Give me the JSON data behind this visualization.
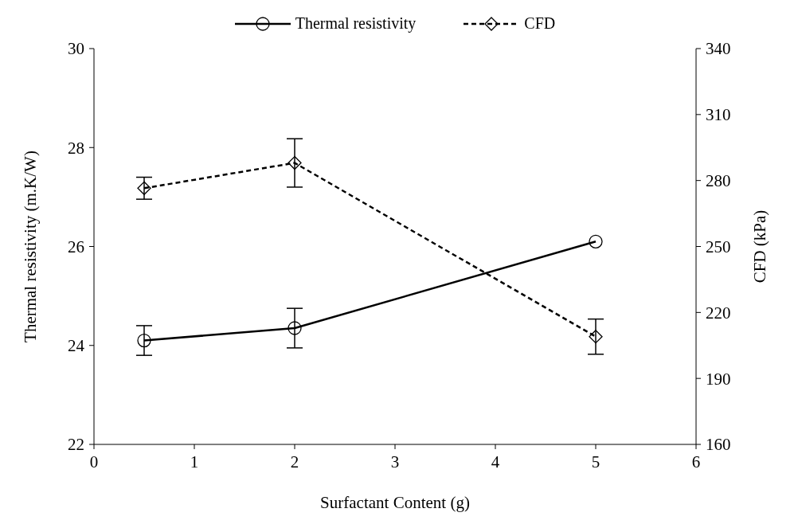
{
  "chart_data": {
    "type": "line",
    "xlabel": "Surfactant Content (g)",
    "ylabel": "Thermal resistivity (m.K/W)",
    "y2label": "CFD (kPa)",
    "x": [
      0.5,
      2,
      5
    ],
    "series": [
      {
        "name": "Thermal resistivity",
        "color": "#000000",
        "values": [
          24.1,
          24.35,
          26.1
        ],
        "errors": [
          0.3,
          0.4,
          null
        ],
        "marker": "circle",
        "line_style": "solid"
      },
      {
        "name": "CFD",
        "color": "#000000",
        "values": [
          276.5,
          288,
          209
        ],
        "errors": [
          5,
          11,
          8
        ],
        "marker": "diamond",
        "line_style": "dashed",
        "axis": "y2"
      }
    ],
    "xlim": [
      0,
      6
    ],
    "xticks": [
      0,
      1,
      2,
      3,
      4,
      5,
      6
    ],
    "ylim": [
      22,
      30
    ],
    "yticks": [
      22,
      24,
      26,
      28,
      30
    ],
    "y2lim": [
      160,
      340
    ],
    "y2ticks": [
      160,
      190,
      220,
      250,
      280,
      310,
      340
    ],
    "legend": "top"
  }
}
